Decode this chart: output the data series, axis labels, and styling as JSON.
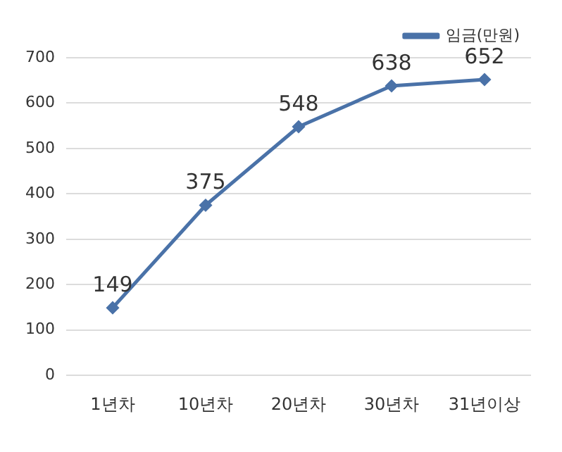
{
  "chart_data": {
    "type": "line",
    "categories": [
      "1년차",
      "10년차",
      "20년차",
      "30년차",
      "31년이상"
    ],
    "series": [
      {
        "name": "임금(만원)",
        "color": "#4a72a8",
        "values": [
          149,
          375,
          548,
          638,
          652
        ]
      }
    ],
    "ylim": [
      0,
      700
    ],
    "yticks": [
      0,
      100,
      200,
      300,
      400,
      500,
      600,
      700
    ],
    "grid": "y",
    "legend": "top right",
    "marker": "diamond",
    "data_labels": true
  }
}
